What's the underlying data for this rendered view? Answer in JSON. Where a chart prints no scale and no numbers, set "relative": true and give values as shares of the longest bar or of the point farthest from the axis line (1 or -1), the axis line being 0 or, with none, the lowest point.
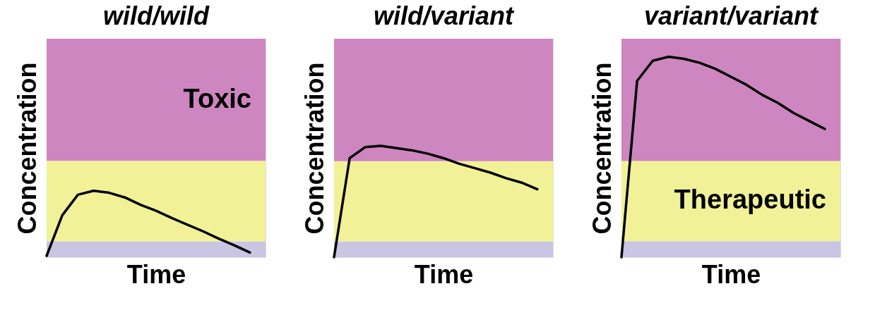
{
  "chart_data": [
    {
      "type": "line",
      "title": "wild/wild",
      "xlabel": "Time",
      "ylabel": "Concentration",
      "relative": true,
      "tick_labels": false,
      "categories": [
        null,
        null,
        null,
        null,
        null,
        null,
        null,
        null,
        null,
        null,
        null,
        null,
        null,
        null,
        null
      ],
      "series": [
        {
          "color": "#000000",
          "values": [
            0.02,
            0.63,
            0.94,
            1,
            0.97,
            0.9,
            0.79,
            0.7,
            0.59,
            0.49,
            0.39,
            0.28,
            0.18,
            0.07,
            null
          ]
        }
      ],
      "bands": [
        {
          "axis": "y",
          "from": 0,
          "to": 0.24,
          "color": "#c9c5e3"
        },
        {
          "axis": "y",
          "from": 0.24,
          "to": 1.45,
          "color": "#f1f297"
        },
        {
          "axis": "y",
          "from": 1.45,
          "to": 3.29,
          "color": "#cd86c0",
          "label": "Toxic"
        }
      ]
    },
    {
      "type": "line",
      "title": "wild/variant",
      "xlabel": "Time",
      "ylabel": "Concentration",
      "relative": true,
      "tick_labels": false,
      "categories": [
        null,
        null,
        null,
        null,
        null,
        null,
        null,
        null,
        null,
        null,
        null,
        null,
        null,
        null,
        null
      ],
      "series": [
        {
          "color": "#000000",
          "values": [
            0,
            0.89,
            0.99,
            1,
            0.98,
            0.96,
            0.93,
            0.89,
            0.84,
            0.8,
            0.76,
            0.71,
            0.67,
            0.61,
            null
          ]
        }
      ],
      "bands": [
        {
          "axis": "y",
          "from": 0,
          "to": 0.143,
          "color": "#c9c5e3"
        },
        {
          "axis": "y",
          "from": 0.143,
          "to": 0.863,
          "color": "#f1f297"
        },
        {
          "axis": "y",
          "from": 0.863,
          "to": 1.963,
          "color": "#cd86c0"
        }
      ]
    },
    {
      "type": "line",
      "title": "variant/variant",
      "xlabel": "Time",
      "ylabel": "Concentration",
      "relative": true,
      "tick_labels": false,
      "categories": [
        null,
        null,
        null,
        null,
        null,
        null,
        null,
        null,
        null,
        null,
        null,
        null,
        null,
        null,
        null
      ],
      "series": [
        {
          "color": "#000000",
          "values": [
            0,
            0.88,
            0.98,
            1,
            0.99,
            0.97,
            0.94,
            0.9,
            0.86,
            0.81,
            0.77,
            0.72,
            0.68,
            0.64,
            null
          ]
        }
      ],
      "bands": [
        {
          "axis": "y",
          "from": 0,
          "to": 0.08,
          "color": "#c9c5e3"
        },
        {
          "axis": "y",
          "from": 0.08,
          "to": 0.48,
          "color": "#f1f297",
          "label": "Therapeutic"
        },
        {
          "axis": "y",
          "from": 0.48,
          "to": 1.09,
          "color": "#cd86c0"
        }
      ]
    }
  ]
}
